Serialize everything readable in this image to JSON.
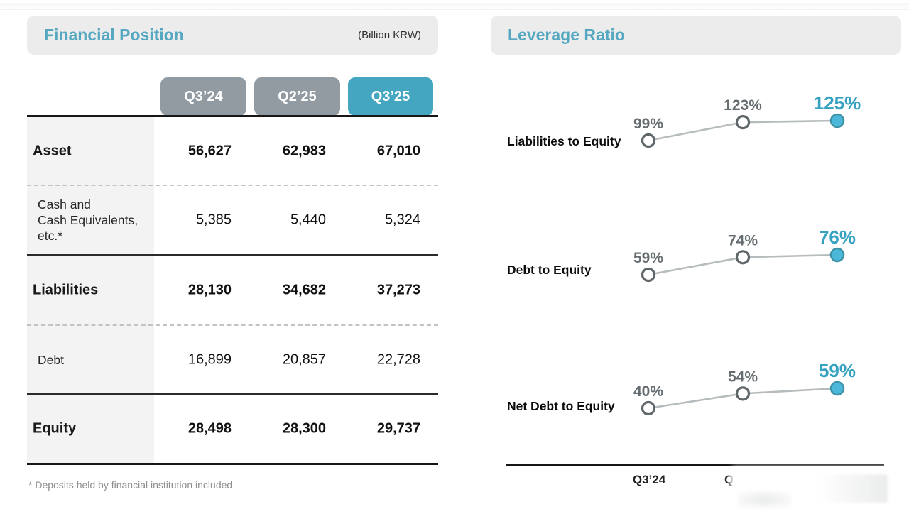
{
  "colors": {
    "accent_teal": "#44a6c1",
    "title_teal": "#55a8c0",
    "tab_gray": "#919ba1",
    "trend_line": "#b6bbbd",
    "open_dot_stroke": "#60676b",
    "filled_dot_fill": "#4cb8d9",
    "filled_dot_stroke": "#3e92a8",
    "value_label_gray": "#666d71",
    "value_label_teal": "#36a2c0",
    "header_box_bg": "#ececed",
    "label_col_bg": "#f3f3f4"
  },
  "left_panel": {
    "title": "Financial Position",
    "unit_note": "(Billion KRW)",
    "columns": [
      "Q3’24",
      "Q2’25",
      "Q3’25"
    ],
    "rows": [
      {
        "label": "Asset",
        "values": [
          "56,627",
          "62,983",
          "67,010"
        ],
        "bold": true
      },
      {
        "label": "Cash and\nCash Equivalents,\netc.*",
        "values": [
          "5,385",
          "5,440",
          "5,324"
        ],
        "bold": false
      },
      {
        "label": "Liabilities",
        "values": [
          "28,130",
          "34,682",
          "37,273"
        ],
        "bold": true
      },
      {
        "label": "Debt",
        "values": [
          "16,899",
          "20,857",
          "22,728"
        ],
        "bold": false
      },
      {
        "label": "Equity",
        "values": [
          "28,498",
          "28,300",
          "29,737"
        ],
        "bold": true
      }
    ],
    "footnote": "* Deposits held by financial institution included"
  },
  "right_panel": {
    "title": "Leverage Ratio",
    "charts": [
      {
        "label": "Liabilities to Equity",
        "values": [
          99,
          123,
          125
        ],
        "point_labels": [
          "99%",
          "123%",
          "125%"
        ]
      },
      {
        "label": "Debt to Equity",
        "values": [
          59,
          74,
          76
        ],
        "point_labels": [
          "59%",
          "74%",
          "76%"
        ]
      },
      {
        "label": "Net Debt to Equity",
        "values": [
          40,
          54,
          59
        ],
        "point_labels": [
          "40%",
          "54%",
          "59%"
        ]
      }
    ],
    "x_axis": {
      "visible_labels": [
        "Q3’24",
        "Q"
      ]
    }
  },
  "chart_data": [
    {
      "type": "table",
      "title": "Financial Position",
      "unit": "Billion KRW",
      "columns": [
        "Q3’24",
        "Q2’25",
        "Q3’25"
      ],
      "rows": [
        [
          "Asset",
          56627,
          62983,
          67010
        ],
        [
          "Cash and Cash Equivalents, etc.*",
          5385,
          5440,
          5324
        ],
        [
          "Liabilities",
          28130,
          34682,
          37273
        ],
        [
          "Debt",
          16899,
          20857,
          22728
        ],
        [
          "Equity",
          28498,
          28300,
          29737
        ]
      ]
    },
    {
      "type": "line",
      "title": "Leverage Ratio",
      "categories": [
        "Q3’24",
        "Q2’25",
        "Q3’25"
      ],
      "series": [
        {
          "name": "Liabilities to Equity",
          "values": [
            99,
            123,
            125
          ]
        },
        {
          "name": "Debt to Equity",
          "values": [
            59,
            74,
            76
          ]
        },
        {
          "name": "Net Debt to Equity",
          "values": [
            40,
            54,
            59
          ]
        }
      ],
      "ylabel": "%",
      "grid": false,
      "legend_position": "left-of-each-series",
      "data_labels_shown": true,
      "highlight_last_point": true
    }
  ]
}
